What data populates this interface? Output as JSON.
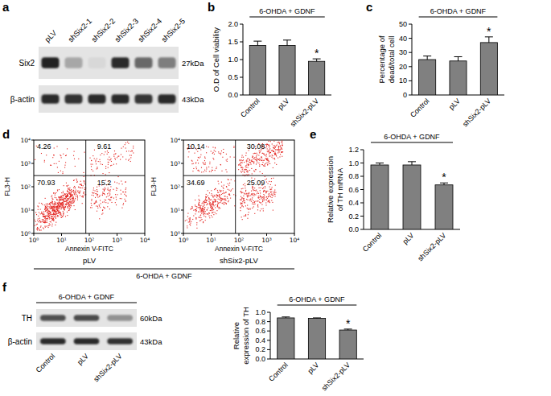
{
  "chart_data": [
    {
      "type": "bar",
      "panel_label": "b",
      "group_label": "6-OHDA + GDNF",
      "y_label": "O.D of Cell viability",
      "categories": [
        "Control",
        "pLV",
        "shSix2-pLV"
      ],
      "values": [
        1.4,
        1.4,
        0.95
      ],
      "errors": [
        0.12,
        0.15,
        0.07
      ],
      "annotations": [
        {
          "text": "*",
          "category": "shSix2-pLV"
        }
      ],
      "color": "#808080",
      "ylim": [
        0,
        2
      ],
      "yticks": [
        {
          "value": 0,
          "label": "0.0"
        },
        0.5,
        {
          "value": 1,
          "label": "1.0"
        },
        1.5,
        {
          "value": 2,
          "label": "2.0"
        }
      ]
    },
    {
      "type": "bar",
      "panel_label": "c",
      "group_label": "6-OHDA + GDNF",
      "y_label": "Percentage of dead/total cell",
      "categories": [
        "Control",
        "pLV",
        "shSix2-pLV"
      ],
      "values": [
        25,
        24,
        37
      ],
      "errors": [
        2.5,
        3,
        4
      ],
      "annotations": [
        {
          "text": "*",
          "category": "shSix2-pLV"
        }
      ],
      "color": "#808080",
      "ylim": [
        0,
        50
      ],
      "yticks": [
        0,
        10,
        20,
        30,
        40,
        50
      ]
    },
    {
      "type": "bar",
      "panel_label": "e",
      "group_label": "6-OHDA + GDNF",
      "y_label": "Relative expression of TH mRNA",
      "categories": [
        "Control",
        "pLV",
        "shSix2-pLV"
      ],
      "values": [
        0.97,
        0.97,
        0.67
      ],
      "errors": [
        0.03,
        0.05,
        0.03
      ],
      "annotations": [
        {
          "text": "*",
          "category": "shSix2-pLV"
        }
      ],
      "color": "#808080",
      "ylim": [
        0,
        1.2
      ],
      "yticks": [
        {
          "value": 0,
          "label": "0.0"
        },
        0.2,
        0.4,
        0.6,
        0.8,
        {
          "value": 1,
          "label": "1.0"
        },
        1.2
      ]
    },
    {
      "type": "bar",
      "group_label": "6-OHDA + GDNF",
      "y_label": "Relative expression of TH",
      "categories": [
        "Control",
        "pLV",
        "shSix2-pLV"
      ],
      "values": [
        0.88,
        0.87,
        0.62
      ],
      "errors": [
        0.02,
        0.01,
        0.02
      ],
      "annotations": [
        {
          "text": "*",
          "category": "shSix2-pLV"
        }
      ],
      "color": "#808080",
      "ylim": [
        0,
        1
      ],
      "yticks": [
        {
          "value": 0,
          "label": "0.0"
        },
        0.2,
        0.4,
        0.6,
        0.8,
        {
          "value": 1,
          "label": "1.0"
        }
      ]
    }
  ],
  "flow_cytometry": {
    "panel_label": "d",
    "x_label": "Annexin V-FITC",
    "y_label": "FL3-H",
    "group_label": "6-OHDA + GDNF",
    "log": true,
    "color": "#e3231f",
    "xlim": [
      1,
      10000
    ],
    "ylim": [
      1,
      10000
    ],
    "xticks": [
      {
        "value": 1,
        "label": "10⁰"
      },
      {
        "value": 10,
        "label": "10¹"
      },
      {
        "value": 100,
        "label": "10²"
      },
      {
        "value": 1000,
        "label": "10³"
      },
      {
        "value": 10000,
        "label": "10⁴"
      }
    ],
    "yticks": [
      {
        "value": 1,
        "label": "10⁰"
      },
      {
        "value": 10,
        "label": "10¹"
      },
      {
        "value": 100,
        "label": "10²"
      },
      {
        "value": 1000,
        "label": "10³"
      },
      {
        "value": 10000,
        "label": "10⁴"
      }
    ],
    "gate_x": 75,
    "gate_y": 300,
    "plots": [
      {
        "name": "pLV",
        "quadrants": {
          "upper_left": 4.26,
          "upper_right": 9.61,
          "lower_left": 70.93,
          "lower_right": 15.2
        }
      },
      {
        "name": "shSix2-pLV",
        "quadrants": {
          "upper_left": 10.14,
          "upper_right": 30.08,
          "lower_left": 34.69,
          "lower_right": 25.09
        }
      }
    ]
  },
  "blots": [
    {
      "panel_label": "a",
      "lanes": [
        "pLV",
        "shSix2-1",
        "shSix2-2",
        "shSix2-3",
        "shSix2-4",
        "shSix2-5"
      ],
      "rows": [
        {
          "name": "Six2",
          "size": "27kDa"
        },
        {
          "name": "β-actin",
          "size": "43kDa"
        }
      ]
    },
    {
      "panel_label": "f",
      "group_label": "6-OHDA + GDNF",
      "lanes": [
        "Control",
        "pLV",
        "shSix2-pLV"
      ],
      "rows": [
        {
          "name": "TH",
          "size": "60kDa"
        },
        {
          "name": "β-actin",
          "size": "43kDa"
        }
      ]
    }
  ]
}
